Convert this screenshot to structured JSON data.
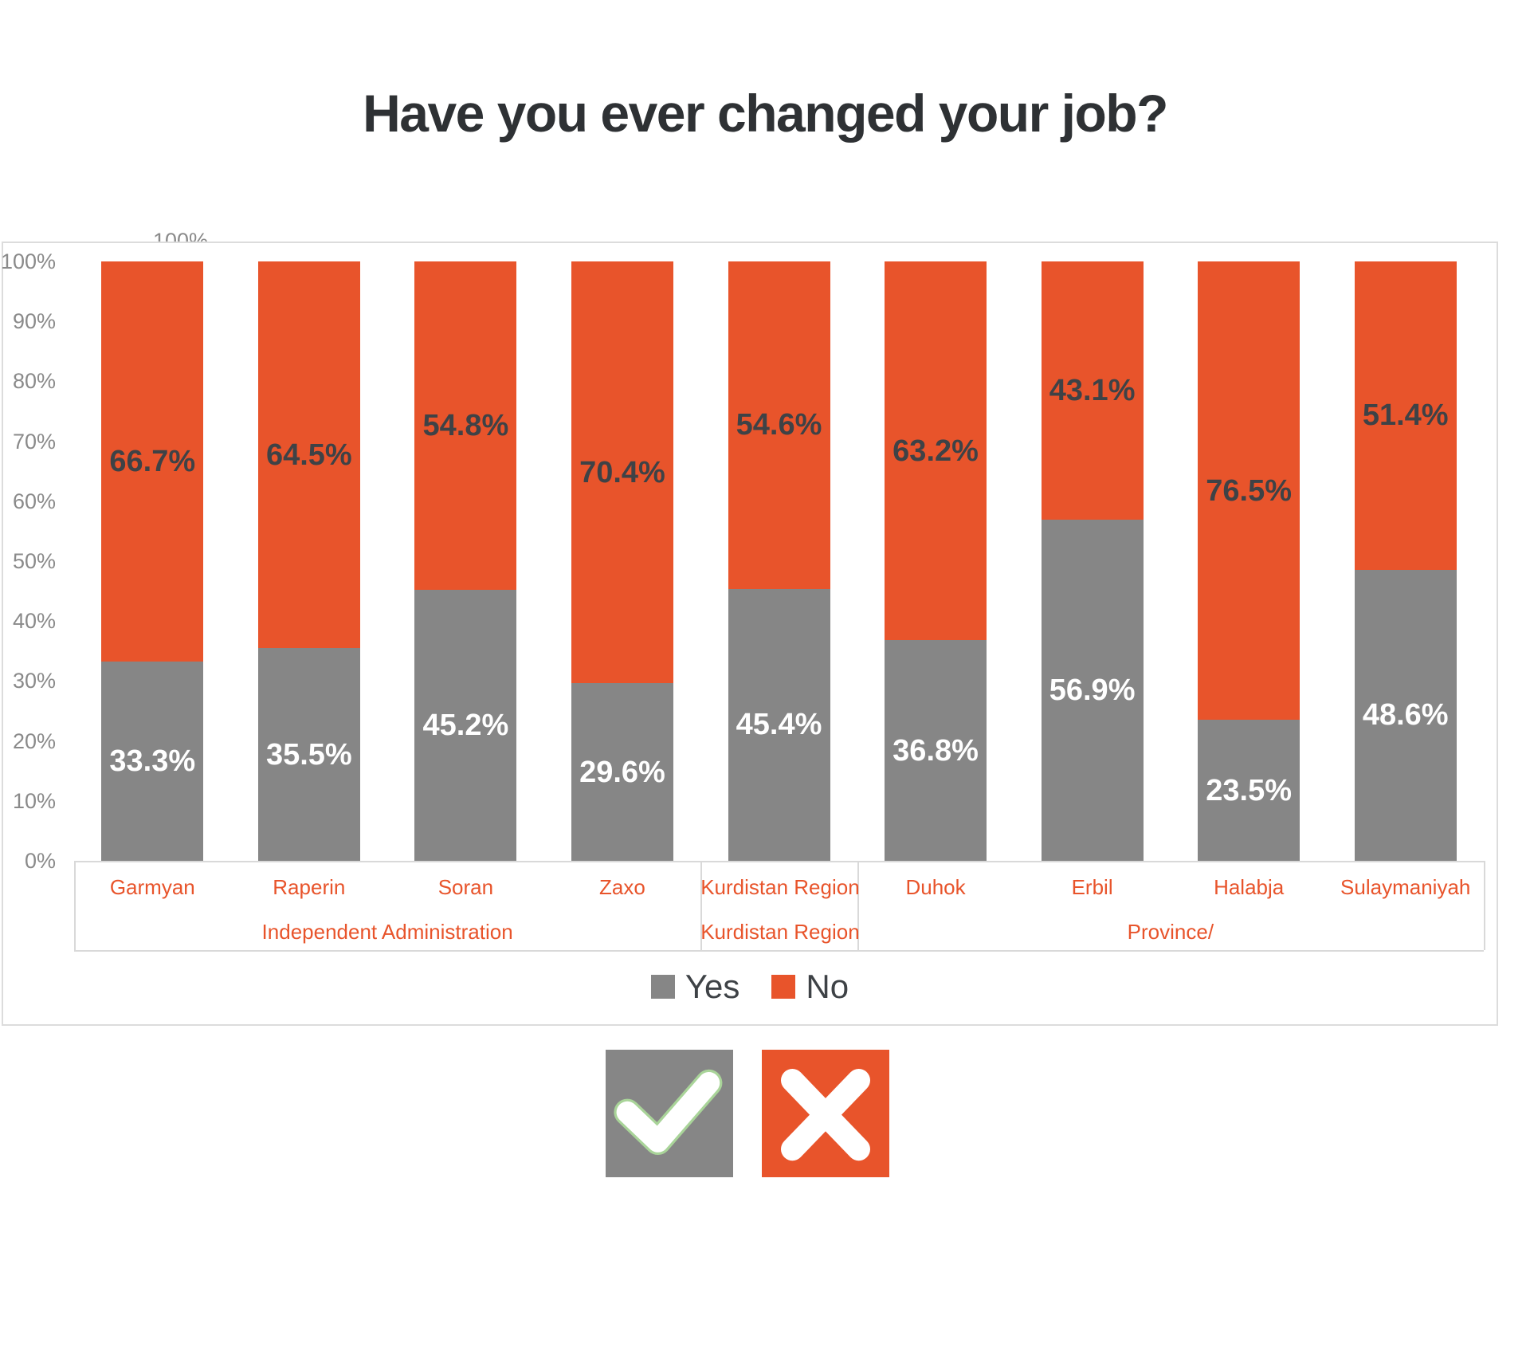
{
  "title": "Have you ever changed your job?",
  "artifacts": {
    "clipped_tick": "100%"
  },
  "chart_data": {
    "type": "bar",
    "stacked": true,
    "title": "Have you ever changed your job?",
    "categories": [
      "Garmyan",
      "Raperin",
      "Soran",
      "Zaxo",
      "Kurdistan Region",
      "Duhok",
      "Erbil",
      "Halabja",
      "Sulaymaniyah"
    ],
    "series": [
      {
        "name": "Yes",
        "color": "#868686",
        "label_color": "#ffffff",
        "values": [
          33.3,
          35.5,
          45.2,
          29.6,
          45.4,
          36.8,
          56.9,
          23.5,
          48.6
        ]
      },
      {
        "name": "No",
        "color": "#e8542b",
        "label_color": "#3e4246",
        "values": [
          66.7,
          64.5,
          54.8,
          70.4,
          54.6,
          63.2,
          43.1,
          76.5,
          51.4
        ]
      }
    ],
    "category_groups": [
      {
        "label": "Independent Administration",
        "start": 0,
        "end": 3
      },
      {
        "label": "Kurdistan Region",
        "start": 4,
        "end": 4
      },
      {
        "label": "Province/",
        "start": 5,
        "end": 8
      }
    ],
    "y_axis": {
      "min": 0,
      "max": 100,
      "tick_step": 10,
      "tick_labels": [
        "0%",
        "10%",
        "20%",
        "30%",
        "40%",
        "50%",
        "60%",
        "70%",
        "80%",
        "90%",
        "100%"
      ]
    },
    "legend": {
      "position": "bottom",
      "items": [
        {
          "label": "Yes",
          "color": "#868686"
        },
        {
          "label": "No",
          "color": "#e8542b"
        }
      ]
    },
    "grid": false,
    "axis_text_color": "#8a8a8a",
    "category_text_color": "#e8542b"
  },
  "footer_icons": {
    "check": {
      "bg": "#868686",
      "glyph": "checkmark",
      "glyph_color": "#ffffff",
      "outline": "#a9d499"
    },
    "cross": {
      "bg": "#e8542b",
      "glyph": "x-mark",
      "glyph_color": "#ffffff"
    }
  }
}
